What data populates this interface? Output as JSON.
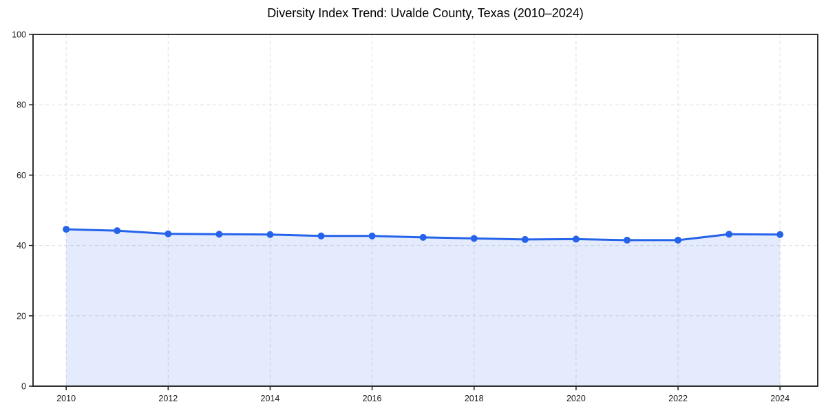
{
  "chart_data": {
    "type": "area",
    "title": "Diversity Index Trend: Uvalde County, Texas (2010–2024)",
    "xlabel": "",
    "ylabel": "",
    "x": [
      2010,
      2011,
      2012,
      2013,
      2014,
      2015,
      2016,
      2017,
      2018,
      2019,
      2020,
      2021,
      2022,
      2023,
      2024
    ],
    "series": [
      {
        "name": "Diversity Index",
        "values": [
          44.6,
          44.2,
          43.3,
          43.2,
          43.1,
          42.7,
          42.7,
          42.3,
          42.0,
          41.7,
          41.8,
          41.5,
          41.5,
          43.2,
          43.1
        ]
      }
    ],
    "xticks": [
      2010,
      2012,
      2014,
      2016,
      2018,
      2020,
      2022,
      2024
    ],
    "yticks": [
      0,
      20,
      40,
      60,
      80,
      100
    ],
    "xlim": [
      2009.35,
      2024.74
    ],
    "ylim": [
      0,
      100
    ],
    "grid": true,
    "legend_position": "none",
    "marker": "circle",
    "colors": {
      "line": "#2563eb",
      "marker": "#2563eb",
      "fill": "rgba(37,99,235,0.125)",
      "grid": "#dddddd",
      "spine": "#1c1c1c",
      "tick_text": "#1a1a1a",
      "background": "#ffffff"
    }
  }
}
